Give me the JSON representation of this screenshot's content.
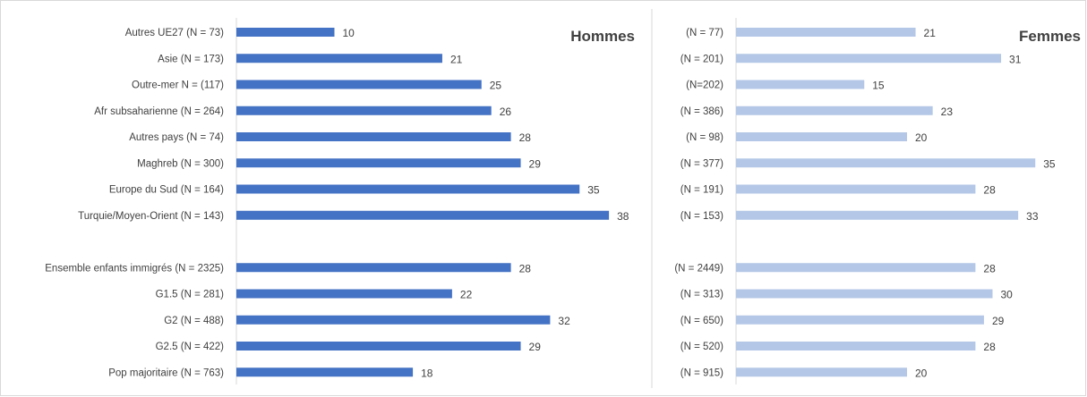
{
  "chart_data": [
    {
      "type": "bar",
      "orientation": "horizontal",
      "title": "Hommes",
      "categories": [
        "Autres UE27 (N = 73)",
        "Asie (N = 173)",
        "Outre-mer N = (117)",
        "Afr subsaharienne (N = 264)",
        "Autres pays (N = 74)",
        "Maghreb  (N = 300)",
        "Europe du Sud (N = 164)",
        "Turquie/Moyen-Orient (N = 143)",
        "",
        "Ensemble enfants immigrés (N = 2325)",
        "G1.5 (N = 281)",
        "G2 (N = 488)",
        "G2.5 (N = 422)",
        "Pop majoritaire (N = 763)"
      ],
      "values": [
        10,
        21,
        25,
        26,
        28,
        29,
        35,
        38,
        null,
        28,
        22,
        32,
        29,
        18
      ],
      "data_labels": [
        "10",
        "21",
        "25",
        "26",
        "28",
        "29",
        "35",
        "38",
        "",
        "28",
        "22",
        "32",
        "29",
        "18"
      ],
      "xlim": [
        0,
        40
      ],
      "color": "#4472c4",
      "grid": false,
      "legend": false
    },
    {
      "type": "bar",
      "orientation": "horizontal",
      "title": "Femmes",
      "categories": [
        "(N = 77)",
        "(N = 201)",
        "(N=202)",
        "(N = 386)",
        "(N = 98)",
        "(N = 377)",
        "(N = 191)",
        "(N = 153)",
        "",
        "(N = 2449)",
        "(N = 313)",
        "(N = 650)",
        "(N = 520)",
        "(N = 915)"
      ],
      "values": [
        21,
        31,
        15,
        23,
        20,
        35,
        28,
        33,
        null,
        28,
        30,
        29,
        28,
        20
      ],
      "data_labels": [
        "21",
        "31",
        "15",
        "23",
        "20",
        "35",
        "28",
        "33",
        "",
        "28",
        "30",
        "29",
        "28",
        "20"
      ],
      "xlim": [
        0,
        40
      ],
      "color": "#b4c7e7",
      "grid": false,
      "legend": false
    }
  ]
}
